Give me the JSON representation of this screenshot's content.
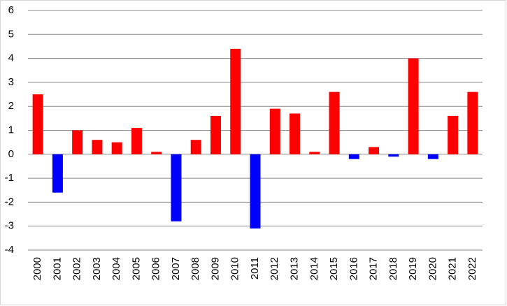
{
  "chart_data": {
    "type": "bar",
    "categories": [
      "2000",
      "2001",
      "2002",
      "2003",
      "2004",
      "2005",
      "2006",
      "2007",
      "2008",
      "2009",
      "2010",
      "2011",
      "2012",
      "2013",
      "2014",
      "2015",
      "2016",
      "2017",
      "2018",
      "2019",
      "2020",
      "2021",
      "2022"
    ],
    "values": [
      2.5,
      -1.6,
      1.0,
      0.6,
      0.5,
      1.1,
      0.1,
      -2.8,
      0.6,
      1.6,
      4.4,
      -3.1,
      1.9,
      1.7,
      0.1,
      2.6,
      -0.2,
      0.3,
      -0.1,
      4.0,
      -0.2,
      1.6,
      2.6
    ],
    "color_positive": "#ff0000",
    "color_negative": "#0000ff",
    "ylim": [
      -4,
      6
    ],
    "yticks": [
      -4,
      -3,
      -2,
      -1,
      0,
      1,
      2,
      3,
      4,
      5,
      6
    ],
    "grid": true
  }
}
